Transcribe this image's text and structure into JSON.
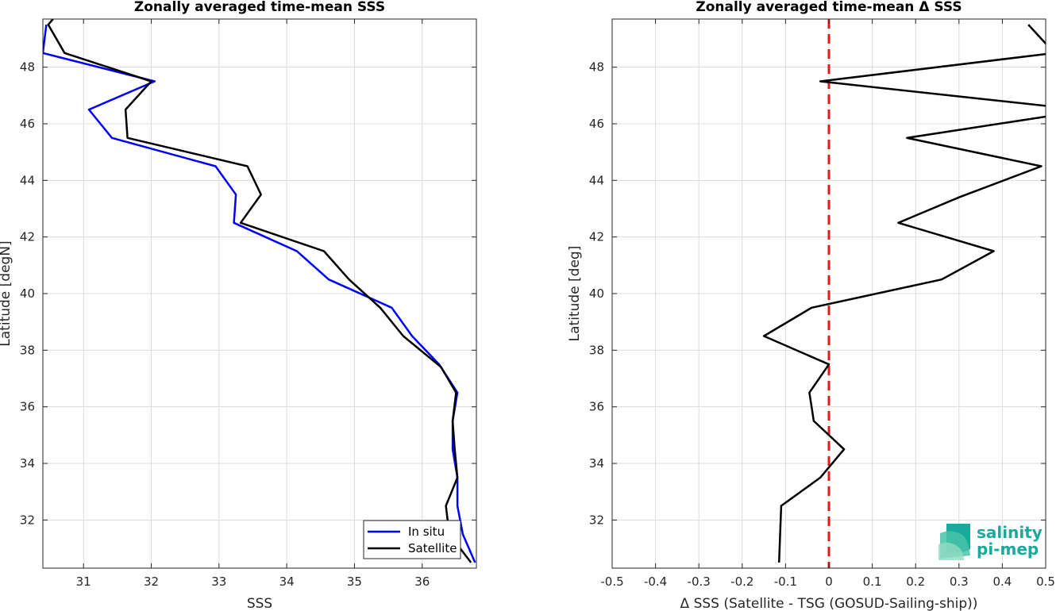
{
  "chart_data": [
    {
      "type": "line",
      "title": "Zonally averaged time-mean SSS",
      "xlabel": "SSS",
      "ylabel": "Latitude [degN]",
      "xlim": [
        30.4,
        36.8
      ],
      "ylim": [
        30.3,
        49.7
      ],
      "xticks": [
        "31",
        "32",
        "33",
        "34",
        "35",
        "36"
      ],
      "yticks": [
        "32",
        "34",
        "36",
        "38",
        "40",
        "42",
        "44",
        "46",
        "48"
      ],
      "grid": true,
      "legend": "bottom-right",
      "series": [
        {
          "name": "In situ",
          "color": "#0000ff",
          "points": [
            [
              30.45,
              49.5
            ],
            [
              30.4,
              48.5
            ],
            [
              32.05,
              47.5
            ],
            [
              31.08,
              46.5
            ],
            [
              31.42,
              45.5
            ],
            [
              32.95,
              44.5
            ],
            [
              33.25,
              43.5
            ],
            [
              33.22,
              42.5
            ],
            [
              34.15,
              41.5
            ],
            [
              34.62,
              40.5
            ],
            [
              35.55,
              39.5
            ],
            [
              35.85,
              38.5
            ],
            [
              36.25,
              37.5
            ],
            [
              36.52,
              36.5
            ],
            [
              36.45,
              35.5
            ],
            [
              36.45,
              34.5
            ],
            [
              36.52,
              33.5
            ],
            [
              36.52,
              32.5
            ],
            [
              36.6,
              31.5
            ],
            [
              36.78,
              30.5
            ]
          ]
        },
        {
          "name": "Satellite",
          "color": "#000000",
          "points": [
            [
              30.55,
              49.7
            ],
            [
              30.48,
              49.5
            ],
            [
              30.72,
              48.5
            ],
            [
              32.0,
              47.5
            ],
            [
              31.62,
              46.5
            ],
            [
              31.65,
              45.5
            ],
            [
              33.42,
              44.5
            ],
            [
              33.62,
              43.5
            ],
            [
              33.32,
              42.5
            ],
            [
              34.55,
              41.5
            ],
            [
              34.92,
              40.5
            ],
            [
              35.38,
              39.5
            ],
            [
              35.72,
              38.5
            ],
            [
              36.28,
              37.4
            ],
            [
              36.5,
              36.5
            ],
            [
              36.45,
              35.5
            ],
            [
              36.48,
              34.5
            ],
            [
              36.52,
              33.5
            ],
            [
              36.35,
              32.5
            ],
            [
              36.4,
              31.5
            ],
            [
              36.72,
              30.5
            ]
          ]
        }
      ]
    },
    {
      "type": "line",
      "title": "Zonally averaged time-mean Δ SSS",
      "xlabel": "Δ SSS (Satellite - TSG (GOSUD-Sailing-ship))",
      "ylabel": "Latitude [deg]",
      "xlim": [
        -0.5,
        0.5
      ],
      "ylim": [
        30.3,
        49.7
      ],
      "xticks": [
        "-0.5",
        "-0.4",
        "-0.3",
        "-0.2",
        "-0.1",
        "0",
        "0.1",
        "0.2",
        "0.3",
        "0.4",
        "0.5"
      ],
      "yticks": [
        "32",
        "34",
        "36",
        "38",
        "40",
        "42",
        "44",
        "46",
        "48"
      ],
      "grid": true,
      "reference_line": {
        "x": 0,
        "color": "#e41a1c",
        "style": "dashed"
      },
      "series": [
        {
          "color": "#000000",
          "points": [
            [
              0.46,
              49.5
            ],
            [
              0.52,
              48.5
            ],
            [
              -0.02,
              47.5
            ],
            [
              0.52,
              46.6
            ],
            [
              0.52,
              46.3
            ],
            [
              0.18,
              45.5
            ],
            [
              0.49,
              44.5
            ],
            [
              0.3,
              43.4
            ],
            [
              0.16,
              42.5
            ],
            [
              0.38,
              41.5
            ],
            [
              0.26,
              40.5
            ],
            [
              -0.04,
              39.5
            ],
            [
              -0.15,
              38.5
            ],
            [
              0.0,
              37.5
            ],
            [
              -0.045,
              36.5
            ],
            [
              -0.035,
              35.5
            ],
            [
              0.035,
              34.5
            ],
            [
              -0.02,
              33.5
            ],
            [
              -0.11,
              32.5
            ],
            [
              -0.115,
              30.5
            ]
          ]
        }
      ]
    }
  ],
  "legend": {
    "items": [
      "In situ",
      "Satellite"
    ]
  },
  "logo": {
    "line1": "salinity",
    "line2": "pi-mep",
    "colors": [
      "#1aa99a",
      "#7fd4b7"
    ]
  }
}
